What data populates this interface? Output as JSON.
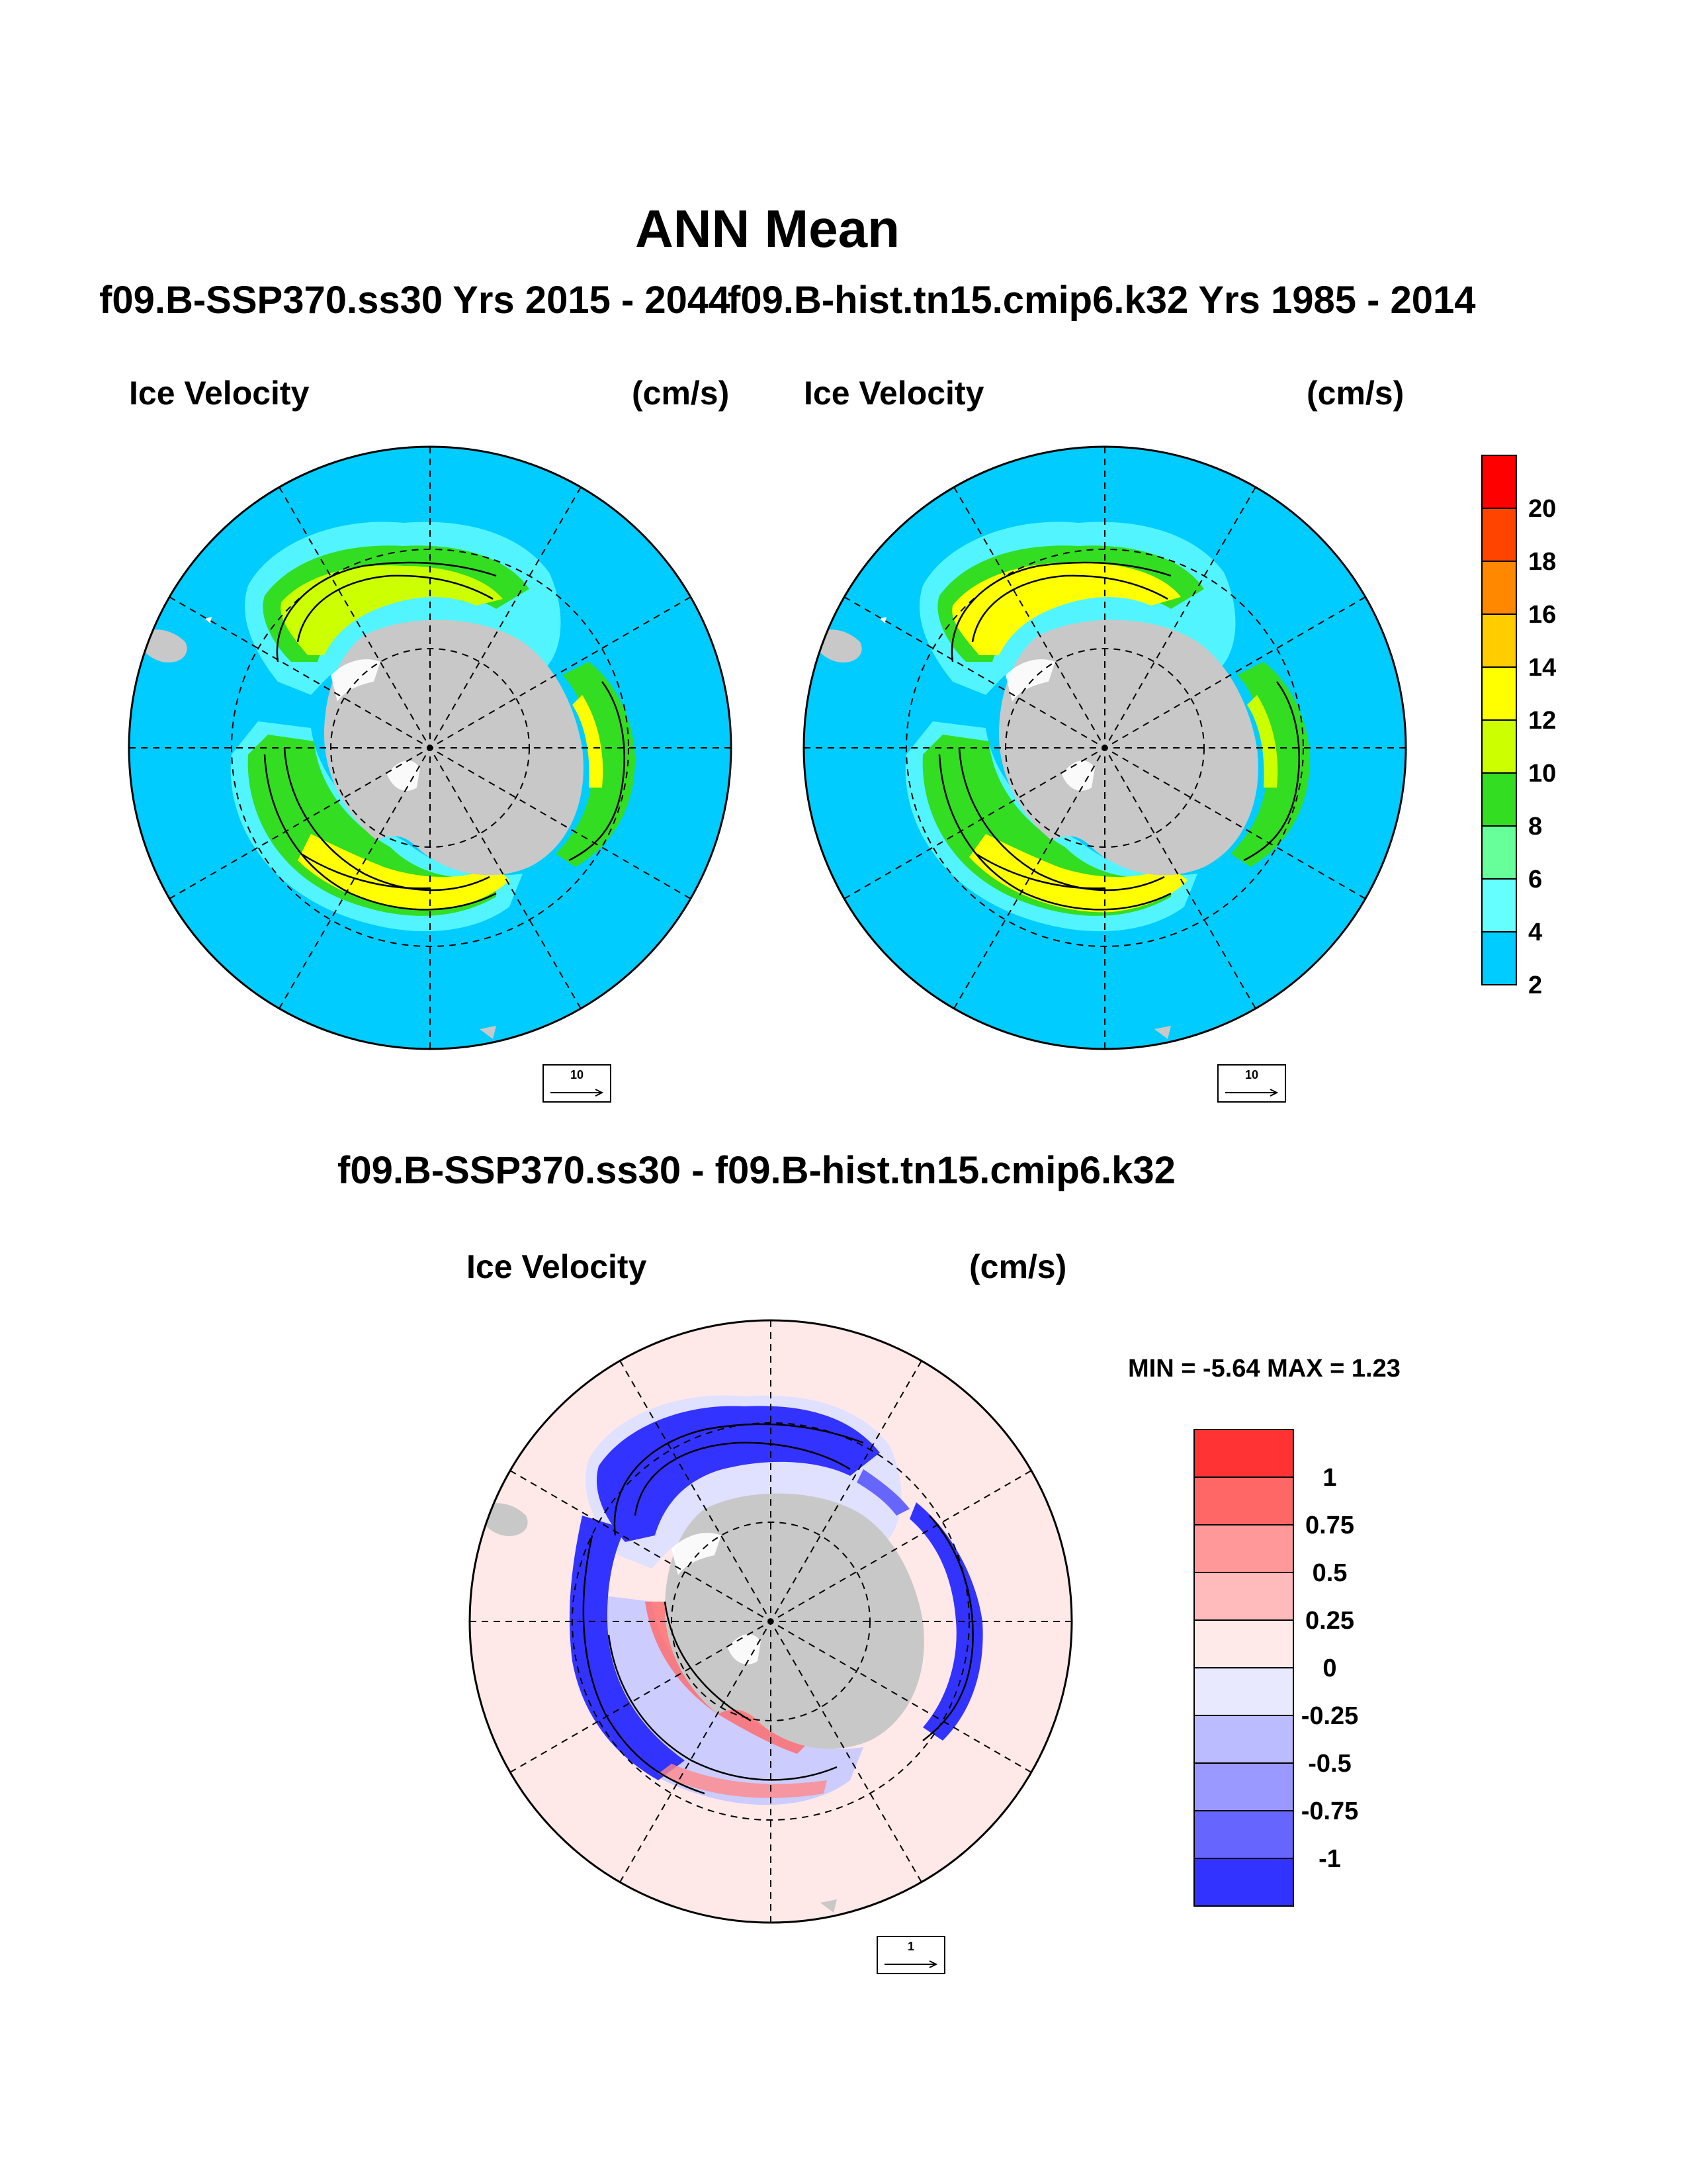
{
  "main_title": "ANN Mean",
  "left_panel": {
    "case": "f09.B-SSP370.ss30  Yrs 2015 - 2044",
    "variable": "Ice Velocity",
    "units": "(cm/s)",
    "ref_vector": "10"
  },
  "right_panel": {
    "case": "f09.B-hist.tn15.cmip6.k32  Yrs 1985 - 2014",
    "variable": "Ice Velocity",
    "units": "(cm/s)",
    "ref_vector": "10"
  },
  "diff_panel": {
    "title": "f09.B-SSP370.ss30 - f09.B-hist.tn15.cmip6.k32",
    "variable": "Ice Velocity",
    "units": "(cm/s)",
    "minmax": "MIN =  -5.64 MAX =   1.23",
    "ref_vector": "1"
  },
  "colorbar_top": {
    "labels": [
      "2",
      "4",
      "6",
      "8",
      "10",
      "12",
      "14",
      "16",
      "18",
      "20"
    ],
    "colors": [
      "#00ccff",
      "#66ffff",
      "#66ff99",
      "#33dd22",
      "#ccff00",
      "#ffff00",
      "#ffcc00",
      "#ff8800",
      "#ff4400",
      "#ff0000"
    ]
  },
  "colorbar_diff": {
    "labels": [
      "1",
      "0.75",
      "0.5",
      "0.25",
      "0",
      "-0.25",
      "-0.5",
      "-0.75",
      "-1"
    ],
    "colors": [
      "#ff3333",
      "#ff6666",
      "#ff9999",
      "#ffbbbb",
      "#ffeaea",
      "#e8e8ff",
      "#bbbbff",
      "#9999ff",
      "#6666ff",
      "#3333ff"
    ]
  },
  "colors": {
    "ocean_top": "#00ccff",
    "ocean_diff": "#ffe8e8",
    "land": "#c8c8c8"
  }
}
